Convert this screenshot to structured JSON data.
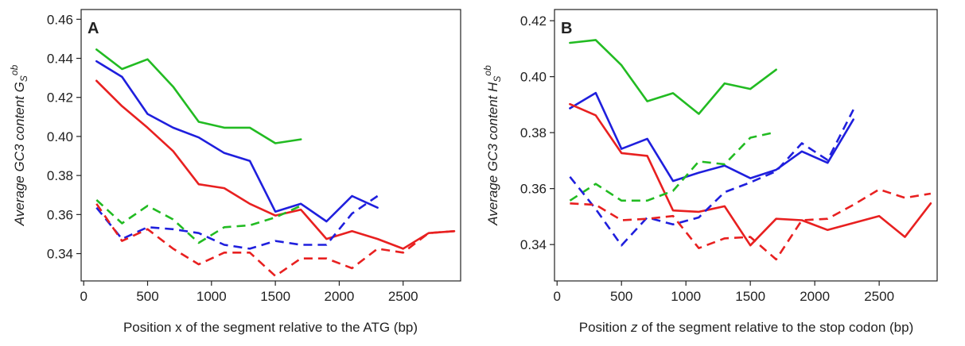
{
  "chart_data": [
    {
      "type": "line",
      "panel_label": "A",
      "xlabel": "Position x of the segment relative to the ATG (bp)",
      "ylabel_main": "Average GC3 content G",
      "ylabel_sub": "S",
      "ylabel_sup": "ob",
      "xlim": [
        -20,
        2950
      ],
      "ylim": [
        0.326,
        0.465
      ],
      "xticks": [
        0,
        500,
        1000,
        1500,
        2000,
        2500
      ],
      "xtick_labels": [
        "0",
        "500",
        "1000",
        "1500",
        "2000",
        "2500"
      ],
      "yticks": [
        0.34,
        0.36,
        0.38,
        0.4,
        0.42,
        0.44,
        0.46
      ],
      "ytick_labels": [
        "0.34",
        "0.36",
        "0.38",
        "0.40",
        "0.42",
        "0.44",
        "0.46"
      ],
      "grid": false,
      "legend": "none",
      "series": [
        {
          "color": "#22bb22",
          "dash": "solid",
          "x": [
            100,
            300,
            500,
            700,
            900,
            1100,
            1300,
            1500,
            1700
          ],
          "y": [
            0.4445,
            0.4345,
            0.4395,
            0.4255,
            0.4075,
            0.4045,
            0.4045,
            0.3965,
            0.3985
          ]
        },
        {
          "color": "#1f1fdd",
          "dash": "solid",
          "x": [
            100,
            300,
            500,
            700,
            900,
            1100,
            1300,
            1500,
            1700,
            1900,
            2100,
            2300
          ],
          "y": [
            0.4385,
            0.4305,
            0.4115,
            0.4045,
            0.3995,
            0.3915,
            0.3875,
            0.3615,
            0.3655,
            0.3565,
            0.3695,
            0.3635
          ]
        },
        {
          "color": "#e82020",
          "dash": "solid",
          "x": [
            100,
            300,
            500,
            700,
            900,
            1100,
            1300,
            1500,
            1700,
            1900,
            2100,
            2300,
            2500,
            2700,
            2900
          ],
          "y": [
            0.4285,
            0.4155,
            0.4045,
            0.3925,
            0.3755,
            0.3735,
            0.3655,
            0.3595,
            0.3625,
            0.3475,
            0.3515,
            0.3475,
            0.3425,
            0.3505,
            0.3515
          ]
        },
        {
          "color": "#22bb22",
          "dash": "dashed",
          "x": [
            100,
            300,
            500,
            700,
            900,
            1100,
            1300,
            1500,
            1700
          ],
          "y": [
            0.3675,
            0.3555,
            0.3645,
            0.3575,
            0.3455,
            0.3535,
            0.3545,
            0.3585,
            0.3645
          ]
        },
        {
          "color": "#1f1fdd",
          "dash": "dashed",
          "x": [
            100,
            300,
            500,
            700,
            900,
            1100,
            1300,
            1500,
            1700,
            1900,
            2100,
            2300
          ],
          "y": [
            0.3635,
            0.3475,
            0.3535,
            0.3525,
            0.3505,
            0.3445,
            0.3425,
            0.3465,
            0.3445,
            0.3445,
            0.3605,
            0.3695
          ]
        },
        {
          "color": "#e82020",
          "dash": "dashed",
          "x": [
            100,
            300,
            500,
            700,
            900,
            1100,
            1300,
            1500,
            1700,
            1900,
            2100,
            2300,
            2500,
            2700,
            2900
          ],
          "y": [
            0.3655,
            0.3465,
            0.3525,
            0.3425,
            0.3345,
            0.3405,
            0.3405,
            0.3285,
            0.3375,
            0.3375,
            0.3325,
            0.3425,
            0.3405,
            0.3505,
            0.3515
          ]
        }
      ]
    },
    {
      "type": "line",
      "panel_label": "B",
      "xlabel_pre": "Position ",
      "xlabel_var": "z",
      "xlabel_post": " of the segment relative to the stop codon (bp)",
      "ylabel_main": "Average GC3 content H",
      "ylabel_sub": "S",
      "ylabel_sup": "ob",
      "xlim": [
        -20,
        2950
      ],
      "ylim": [
        0.327,
        0.424
      ],
      "xticks": [
        0,
        500,
        1000,
        1500,
        2000,
        2500
      ],
      "xtick_labels": [
        "0",
        "500",
        "1000",
        "1500",
        "2000",
        "2500"
      ],
      "yticks": [
        0.34,
        0.36,
        0.38,
        0.4,
        0.42
      ],
      "ytick_labels": [
        "0.34",
        "0.36",
        "0.38",
        "0.40",
        "0.42"
      ],
      "grid": false,
      "legend": "none",
      "series": [
        {
          "color": "#22bb22",
          "dash": "solid",
          "x": [
            100,
            300,
            500,
            700,
            900,
            1100,
            1300,
            1500,
            1700
          ],
          "y": [
            0.4121,
            0.4131,
            0.4041,
            0.3912,
            0.3941,
            0.3867,
            0.3976,
            0.3956,
            0.4025
          ]
        },
        {
          "color": "#1f1fdd",
          "dash": "solid",
          "x": [
            100,
            300,
            500,
            700,
            900,
            1100,
            1300,
            1500,
            1700,
            1900,
            2100,
            2300
          ],
          "y": [
            0.3887,
            0.3942,
            0.3742,
            0.3778,
            0.3627,
            0.3657,
            0.3682,
            0.3637,
            0.3667,
            0.3733,
            0.3692,
            0.3847
          ]
        },
        {
          "color": "#e82020",
          "dash": "solid",
          "x": [
            100,
            300,
            500,
            700,
            900,
            1100,
            1300,
            1500,
            1700,
            1900,
            2100,
            2300,
            2500,
            2700,
            2900
          ],
          "y": [
            0.3902,
            0.3862,
            0.3727,
            0.3717,
            0.3522,
            0.3517,
            0.3537,
            0.3397,
            0.3492,
            0.3487,
            0.3452,
            0.3477,
            0.3502,
            0.3427,
            0.3547
          ]
        },
        {
          "color": "#22bb22",
          "dash": "dashed",
          "x": [
            100,
            300,
            500,
            700,
            900,
            1100,
            1300,
            1500,
            1700
          ],
          "y": [
            0.3557,
            0.3617,
            0.3557,
            0.3557,
            0.3592,
            0.3697,
            0.3687,
            0.3782,
            0.3802
          ]
        },
        {
          "color": "#1f1fdd",
          "dash": "dashed",
          "x": [
            100,
            300,
            500,
            700,
            900,
            1100,
            1300,
            1500,
            1700,
            1900,
            2100,
            2300
          ],
          "y": [
            0.3642,
            0.3527,
            0.3397,
            0.3497,
            0.3472,
            0.3497,
            0.3587,
            0.3622,
            0.3662,
            0.3762,
            0.3702,
            0.3882
          ]
        },
        {
          "color": "#e82020",
          "dash": "dashed",
          "x": [
            100,
            300,
            500,
            700,
            900,
            1100,
            1300,
            1500,
            1700,
            1900,
            2100,
            2300,
            2500,
            2700,
            2900
          ],
          "y": [
            0.3547,
            0.3542,
            0.3487,
            0.3492,
            0.3502,
            0.3387,
            0.3422,
            0.3427,
            0.3347,
            0.3487,
            0.3492,
            0.3542,
            0.3597,
            0.3567,
            0.3582
          ]
        }
      ]
    }
  ]
}
